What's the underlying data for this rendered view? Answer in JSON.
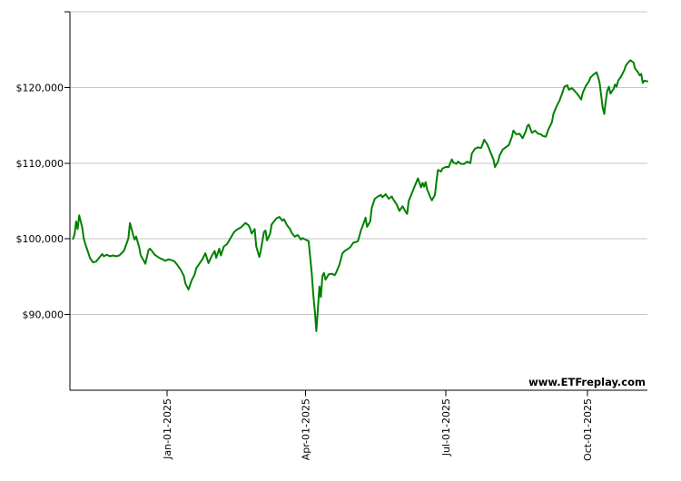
{
  "watermark": {
    "text": "www.ETFreplay.com",
    "color": "#000000"
  },
  "chart_data": {
    "type": "line",
    "title": "",
    "legend": "none",
    "grid": true,
    "background": "#ffffff",
    "grid_color": "#c6c6c6",
    "axis_color": "#000000",
    "line_color": "#008000",
    "x_axis": {
      "start_date": "2024-11-01",
      "tick_labels": [
        "Jan-01-2025",
        "Apr-01-2025",
        "Jul-01-2025",
        "Oct-01-2025"
      ],
      "tick_day_offsets": [
        61,
        151,
        242,
        334
      ],
      "domain_days": [
        -2,
        373
      ]
    },
    "y_axis": {
      "tick_labels": [
        "$120,000",
        "$110,000",
        "$100,000",
        "$90,000"
      ],
      "tick_values": [
        120000,
        110000,
        100000,
        90000
      ],
      "grid_values": [
        130000,
        120000,
        110000,
        100000,
        90000
      ],
      "domain": [
        80000,
        130000
      ]
    },
    "series": [
      {
        "name": "portfolio-value",
        "color": "#008000",
        "points": [
          [
            0,
            100000
          ],
          [
            1,
            100600
          ],
          [
            2,
            102300
          ],
          [
            3,
            101300
          ],
          [
            4,
            103100
          ],
          [
            6,
            101500
          ],
          [
            7,
            100000
          ],
          [
            8,
            99300
          ],
          [
            10,
            98100
          ],
          [
            11,
            97500
          ],
          [
            13,
            96900
          ],
          [
            15,
            97000
          ],
          [
            17,
            97500
          ],
          [
            19,
            98000
          ],
          [
            20,
            97700
          ],
          [
            22,
            97900
          ],
          [
            24,
            97700
          ],
          [
            26,
            97800
          ],
          [
            28,
            97700
          ],
          [
            30,
            97800
          ],
          [
            33,
            98400
          ],
          [
            35,
            99500
          ],
          [
            36,
            100100
          ],
          [
            37,
            102100
          ],
          [
            39,
            100600
          ],
          [
            40,
            99900
          ],
          [
            41,
            100300
          ],
          [
            43,
            98900
          ],
          [
            44,
            97800
          ],
          [
            46,
            97100
          ],
          [
            47,
            96700
          ],
          [
            49,
            98500
          ],
          [
            50,
            98700
          ],
          [
            52,
            98200
          ],
          [
            53,
            97900
          ],
          [
            56,
            97500
          ],
          [
            58,
            97300
          ],
          [
            60,
            97100
          ],
          [
            62,
            97300
          ],
          [
            64,
            97200
          ],
          [
            66,
            97000
          ],
          [
            68,
            96500
          ],
          [
            70,
            95900
          ],
          [
            72,
            95100
          ],
          [
            73,
            94100
          ],
          [
            75,
            93300
          ],
          [
            77,
            94500
          ],
          [
            79,
            95300
          ],
          [
            80,
            96100
          ],
          [
            82,
            96700
          ],
          [
            84,
            97300
          ],
          [
            86,
            98100
          ],
          [
            88,
            96800
          ],
          [
            90,
            97700
          ],
          [
            92,
            98400
          ],
          [
            93,
            97500
          ],
          [
            95,
            98700
          ],
          [
            96,
            97800
          ],
          [
            98,
            99000
          ],
          [
            100,
            99300
          ],
          [
            102,
            100000
          ],
          [
            104,
            100700
          ],
          [
            105,
            101000
          ],
          [
            107,
            101300
          ],
          [
            109,
            101500
          ],
          [
            112,
            102100
          ],
          [
            114,
            101800
          ],
          [
            115,
            101400
          ],
          [
            116,
            100700
          ],
          [
            118,
            101300
          ],
          [
            119,
            99000
          ],
          [
            121,
            97600
          ],
          [
            122,
            98500
          ],
          [
            124,
            100900
          ],
          [
            125,
            101100
          ],
          [
            126,
            99800
          ],
          [
            128,
            100700
          ],
          [
            129,
            101900
          ],
          [
            132,
            102700
          ],
          [
            134,
            102900
          ],
          [
            136,
            102400
          ],
          [
            137,
            102600
          ],
          [
            139,
            101800
          ],
          [
            141,
            101300
          ],
          [
            142,
            100800
          ],
          [
            144,
            100300
          ],
          [
            146,
            100500
          ],
          [
            148,
            99900
          ],
          [
            149,
            100100
          ],
          [
            151,
            99900
          ],
          [
            153,
            99700
          ],
          [
            155,
            95500
          ],
          [
            156,
            92700
          ],
          [
            157,
            90500
          ],
          [
            158,
            87800
          ],
          [
            160,
            93700
          ],
          [
            161,
            92300
          ],
          [
            162,
            95100
          ],
          [
            163,
            95500
          ],
          [
            164,
            94600
          ],
          [
            166,
            95300
          ],
          [
            168,
            95400
          ],
          [
            170,
            95200
          ],
          [
            171,
            95600
          ],
          [
            173,
            96600
          ],
          [
            175,
            98100
          ],
          [
            177,
            98500
          ],
          [
            178,
            98600
          ],
          [
            180,
            98900
          ],
          [
            182,
            99500
          ],
          [
            184,
            99600
          ],
          [
            185,
            99700
          ],
          [
            187,
            101100
          ],
          [
            189,
            102200
          ],
          [
            190,
            102800
          ],
          [
            191,
            101600
          ],
          [
            193,
            102300
          ],
          [
            194,
            104100
          ],
          [
            196,
            105300
          ],
          [
            198,
            105600
          ],
          [
            200,
            105800
          ],
          [
            201,
            105500
          ],
          [
            203,
            105900
          ],
          [
            205,
            105300
          ],
          [
            207,
            105600
          ],
          [
            208,
            105200
          ],
          [
            210,
            104600
          ],
          [
            212,
            103700
          ],
          [
            214,
            104300
          ],
          [
            216,
            103600
          ],
          [
            217,
            103300
          ],
          [
            218,
            105000
          ],
          [
            220,
            106000
          ],
          [
            222,
            107000
          ],
          [
            224,
            108000
          ],
          [
            226,
            106800
          ],
          [
            227,
            107400
          ],
          [
            228,
            106900
          ],
          [
            229,
            107500
          ],
          [
            230,
            106500
          ],
          [
            232,
            105500
          ],
          [
            233,
            105100
          ],
          [
            235,
            105800
          ],
          [
            236,
            107500
          ],
          [
            237,
            109100
          ],
          [
            239,
            108900
          ],
          [
            240,
            109300
          ],
          [
            242,
            109500
          ],
          [
            244,
            109500
          ],
          [
            246,
            110500
          ],
          [
            247,
            110100
          ],
          [
            249,
            109900
          ],
          [
            250,
            110200
          ],
          [
            252,
            109900
          ],
          [
            254,
            109900
          ],
          [
            256,
            110200
          ],
          [
            258,
            110000
          ],
          [
            259,
            111300
          ],
          [
            261,
            111900
          ],
          [
            263,
            112100
          ],
          [
            265,
            112000
          ],
          [
            266,
            112500
          ],
          [
            267,
            113100
          ],
          [
            269,
            112500
          ],
          [
            271,
            111500
          ],
          [
            273,
            110500
          ],
          [
            274,
            109500
          ],
          [
            276,
            110200
          ],
          [
            277,
            111000
          ],
          [
            279,
            111800
          ],
          [
            281,
            112100
          ],
          [
            283,
            112400
          ],
          [
            285,
            113500
          ],
          [
            286,
            114300
          ],
          [
            288,
            113800
          ],
          [
            290,
            113900
          ],
          [
            292,
            113300
          ],
          [
            294,
            114200
          ],
          [
            295,
            114900
          ],
          [
            296,
            115100
          ],
          [
            298,
            114000
          ],
          [
            300,
            114300
          ],
          [
            302,
            113900
          ],
          [
            304,
            113800
          ],
          [
            305,
            113600
          ],
          [
            307,
            113500
          ],
          [
            309,
            114600
          ],
          [
            311,
            115400
          ],
          [
            312,
            116500
          ],
          [
            314,
            117500
          ],
          [
            316,
            118300
          ],
          [
            318,
            119400
          ],
          [
            319,
            120100
          ],
          [
            321,
            120300
          ],
          [
            322,
            119700
          ],
          [
            324,
            119900
          ],
          [
            326,
            119500
          ],
          [
            328,
            119000
          ],
          [
            330,
            118400
          ],
          [
            331,
            119300
          ],
          [
            333,
            120200
          ],
          [
            335,
            120800
          ],
          [
            336,
            121300
          ],
          [
            338,
            121700
          ],
          [
            340,
            122000
          ],
          [
            341,
            121400
          ],
          [
            342,
            120600
          ],
          [
            344,
            117300
          ],
          [
            345,
            116500
          ],
          [
            346,
            118300
          ],
          [
            347,
            119600
          ],
          [
            348,
            120100
          ],
          [
            349,
            119200
          ],
          [
            351,
            119800
          ],
          [
            352,
            120400
          ],
          [
            353,
            120100
          ],
          [
            354,
            120900
          ],
          [
            356,
            121500
          ],
          [
            358,
            122300
          ],
          [
            359,
            122900
          ],
          [
            361,
            123400
          ],
          [
            362,
            123600
          ],
          [
            364,
            123300
          ],
          [
            365,
            122500
          ],
          [
            367,
            122000
          ],
          [
            368,
            121600
          ],
          [
            369,
            121800
          ],
          [
            370,
            120600
          ],
          [
            371,
            120900
          ],
          [
            373,
            120800
          ]
        ]
      }
    ]
  }
}
